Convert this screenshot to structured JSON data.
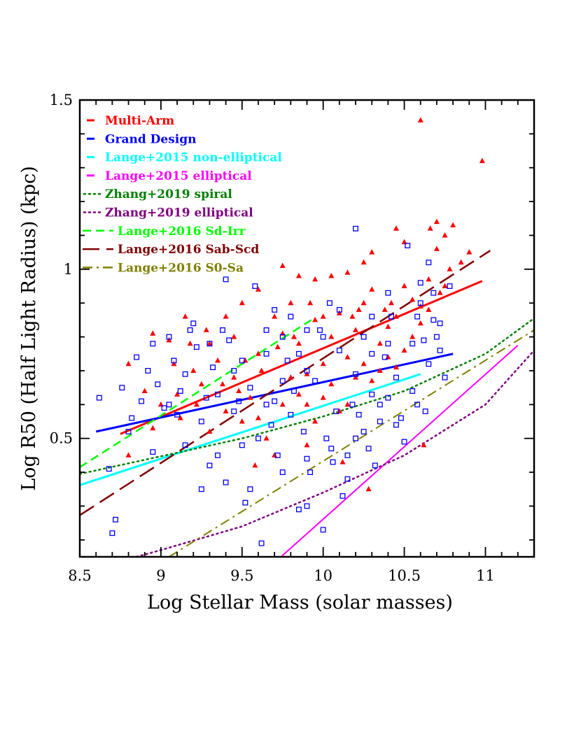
{
  "chart_data": {
    "type": "scatter",
    "xlabel": "Log Stellar Mass (solar masses)",
    "ylabel": "Log R50 (Half Light Radius) (kpc)",
    "xlim": [
      8.5,
      11.3
    ],
    "ylim": [
      0.15,
      1.5
    ],
    "x_ticks": [
      "8.5",
      "9",
      "9.5",
      "10",
      "10.5",
      "11"
    ],
    "y_ticks": [
      "0.5",
      "1",
      "1.5"
    ],
    "x_tick_values": [
      8.5,
      9,
      9.5,
      10,
      10.5,
      11
    ],
    "y_tick_values": [
      0.5,
      1,
      1.5
    ],
    "grid": false,
    "legend_position": "top-left",
    "legend": [
      {
        "label": "Multi-Arm",
        "color": "#ff0000",
        "style": "solid"
      },
      {
        "label": "Grand Design",
        "color": "#0000ff",
        "style": "solid"
      },
      {
        "label": "Lange+2015 non-elliptical",
        "color": "#00ffff",
        "style": "solid"
      },
      {
        "label": "Lange+2015 elliptical",
        "color": "#ff00ff",
        "style": "solid"
      },
      {
        "label": "Zhang+2019 spiral",
        "color": "#008000",
        "style": "dotted"
      },
      {
        "label": "Zhang+2019 elliptical",
        "color": "#800080",
        "style": "dotted"
      },
      {
        "label": "Lange+2016 Sd-Irr",
        "color": "#00ff00",
        "style": "dashed"
      },
      {
        "label": "Lange+2016 Sab-Scd",
        "color": "#800000",
        "style": "longdash"
      },
      {
        "label": "Lange+2016 S0-Sa",
        "color": "#808000",
        "style": "dashdot"
      }
    ],
    "lines": [
      {
        "name": "Multi-Arm",
        "color": "#ff0000",
        "style": "solid",
        "width": 3,
        "x": [
          8.75,
          10.98
        ],
        "y": [
          0.513,
          0.965
        ]
      },
      {
        "name": "Grand Design",
        "color": "#0000ff",
        "style": "solid",
        "width": 3,
        "x": [
          8.6,
          10.8
        ],
        "y": [
          0.52,
          0.75
        ]
      },
      {
        "name": "Lange+2015 non-elliptical",
        "color": "#00ffff",
        "style": "solid",
        "width": 3,
        "x": [
          8.5,
          10.6
        ],
        "y": [
          0.362,
          0.69
        ]
      },
      {
        "name": "Lange+2015 elliptical",
        "color": "#ff00ff",
        "style": "solid",
        "width": 2,
        "x": [
          9.74,
          11.2
        ],
        "y": [
          0.15,
          0.775
        ]
      },
      {
        "name": "Zhang+2019 spiral",
        "color": "#008000",
        "style": "dotted",
        "width": 2.5,
        "x": [
          8.5,
          9.0,
          9.5,
          10.0,
          10.5,
          11.0,
          11.3
        ],
        "y": [
          0.395,
          0.447,
          0.5,
          0.565,
          0.64,
          0.75,
          0.855
        ]
      },
      {
        "name": "Zhang+2019 elliptical",
        "color": "#800080",
        "style": "dotted",
        "width": 2.5,
        "x": [
          8.85,
          9.0,
          9.5,
          10.0,
          10.5,
          11.0,
          11.3
        ],
        "y": [
          0.15,
          0.17,
          0.24,
          0.34,
          0.45,
          0.6,
          0.76
        ]
      },
      {
        "name": "Lange+2016 Sd-Irr",
        "color": "#00ff00",
        "style": "dashed",
        "width": 2.5,
        "x": [
          8.5,
          9.95
        ],
        "y": [
          0.415,
          0.857
        ]
      },
      {
        "name": "Lange+2016 Sab-Scd",
        "color": "#800000",
        "style": "longdash",
        "width": 2.5,
        "x": [
          8.5,
          11.03
        ],
        "y": [
          0.273,
          1.055
        ]
      },
      {
        "name": "Lange+2016 S0-Sa",
        "color": "#808000",
        "style": "dashdot",
        "width": 2,
        "x": [
          9.05,
          11.3
        ],
        "y": [
          0.15,
          0.82
        ]
      }
    ],
    "series": [
      {
        "name": "Multi-Arm",
        "marker": "triangle",
        "color": "#ff0000",
        "points": [
          [
            10.6,
            1.44
          ],
          [
            10.98,
            1.32
          ],
          [
            8.8,
            0.72
          ],
          [
            8.95,
            0.81
          ],
          [
            9.05,
            0.79
          ],
          [
            9.15,
            0.86
          ],
          [
            9.3,
            0.78
          ],
          [
            9.45,
            0.8
          ],
          [
            9.6,
            0.75
          ],
          [
            9.7,
            0.86
          ],
          [
            9.75,
            0.81
          ],
          [
            9.8,
            0.9
          ],
          [
            9.85,
            0.78
          ],
          [
            9.9,
            0.69
          ],
          [
            9.95,
            0.85
          ],
          [
            10.0,
            0.72
          ],
          [
            10.05,
            0.8
          ],
          [
            10.1,
            0.87
          ],
          [
            10.15,
            0.74
          ],
          [
            10.2,
            0.82
          ],
          [
            10.25,
            0.9
          ],
          [
            10.3,
            0.94
          ],
          [
            10.35,
            0.78
          ],
          [
            10.4,
            0.83
          ],
          [
            10.45,
            0.86
          ],
          [
            10.5,
            0.95
          ],
          [
            10.55,
            0.91
          ],
          [
            10.6,
            0.89
          ],
          [
            10.65,
            0.97
          ],
          [
            10.7,
            1.06
          ],
          [
            10.75,
            1.1
          ],
          [
            10.8,
            1.13
          ],
          [
            10.7,
            1.14
          ],
          [
            10.66,
            1.12
          ],
          [
            10.5,
            1.08
          ],
          [
            10.45,
            1.12
          ],
          [
            10.3,
            1.05
          ],
          [
            10.25,
            1.02
          ],
          [
            10.15,
            0.99
          ],
          [
            10.05,
            0.98
          ],
          [
            9.95,
            0.97
          ],
          [
            9.85,
            0.98
          ],
          [
            9.75,
            1.01
          ],
          [
            9.6,
            0.94
          ],
          [
            9.5,
            0.9
          ],
          [
            9.4,
            0.86
          ],
          [
            9.35,
            0.73
          ],
          [
            9.25,
            0.66
          ],
          [
            9.2,
            0.7
          ],
          [
            9.1,
            0.63
          ],
          [
            9.0,
            0.6
          ],
          [
            8.95,
            0.53
          ],
          [
            8.8,
            0.45
          ],
          [
            8.9,
            0.64
          ],
          [
            9.3,
            0.52
          ],
          [
            9.4,
            0.58
          ],
          [
            9.55,
            0.62
          ],
          [
            9.6,
            0.56
          ],
          [
            9.65,
            0.5
          ],
          [
            9.7,
            0.45
          ],
          [
            9.75,
            0.6
          ],
          [
            9.8,
            0.68
          ],
          [
            9.85,
            0.63
          ],
          [
            9.9,
            0.6
          ],
          [
            9.95,
            0.55
          ],
          [
            10.0,
            0.62
          ],
          [
            10.05,
            0.66
          ],
          [
            10.1,
            0.58
          ],
          [
            10.15,
            0.6
          ],
          [
            10.2,
            0.68
          ],
          [
            10.25,
            0.72
          ],
          [
            10.3,
            0.67
          ],
          [
            10.35,
            0.7
          ],
          [
            10.4,
            0.74
          ],
          [
            10.45,
            0.71
          ],
          [
            10.5,
            0.76
          ],
          [
            10.55,
            0.8
          ],
          [
            10.6,
            0.84
          ],
          [
            10.65,
            0.88
          ],
          [
            10.72,
            0.93
          ],
          [
            10.78,
            1.0
          ],
          [
            10.62,
            0.48
          ],
          [
            10.28,
            0.35
          ],
          [
            10.12,
            0.43
          ],
          [
            9.9,
            0.48
          ],
          [
            9.58,
            0.42
          ],
          [
            9.5,
            0.55
          ],
          [
            9.45,
            0.68
          ],
          [
            9.28,
            0.82
          ],
          [
            9.18,
            0.78
          ],
          [
            9.08,
            0.72
          ],
          [
            10.85,
            1.02
          ],
          [
            10.9,
            1.05
          ],
          [
            10.75,
            0.95
          ],
          [
            10.42,
            0.9
          ],
          [
            10.38,
            0.88
          ],
          [
            10.22,
            0.88
          ],
          [
            10.18,
            0.86
          ],
          [
            10.0,
            0.86
          ],
          [
            9.92,
            0.9
          ],
          [
            9.82,
            0.8
          ],
          [
            9.72,
            0.77
          ],
          [
            9.62,
            0.7
          ],
          [
            9.52,
            0.73
          ],
          [
            9.48,
            0.64
          ],
          [
            9.38,
            0.66
          ],
          [
            9.22,
            0.6
          ],
          [
            9.12,
            0.56
          ]
        ]
      },
      {
        "name": "Grand Design",
        "marker": "square",
        "color": "#0000ff",
        "points": [
          [
            10.2,
            1.12
          ],
          [
            8.62,
            0.62
          ],
          [
            8.68,
            0.41
          ],
          [
            8.7,
            0.22
          ],
          [
            8.72,
            0.26
          ],
          [
            8.76,
            0.65
          ],
          [
            8.8,
            0.52
          ],
          [
            8.82,
            0.56
          ],
          [
            8.85,
            0.74
          ],
          [
            8.88,
            0.61
          ],
          [
            8.92,
            0.7
          ],
          [
            8.95,
            0.78
          ],
          [
            8.98,
            0.66
          ],
          [
            9.02,
            0.59
          ],
          [
            9.05,
            0.8
          ],
          [
            9.08,
            0.73
          ],
          [
            9.1,
            0.57
          ],
          [
            9.12,
            0.64
          ],
          [
            9.15,
            0.69
          ],
          [
            9.18,
            0.82
          ],
          [
            9.2,
            0.84
          ],
          [
            9.22,
            0.77
          ],
          [
            9.25,
            0.35
          ],
          [
            9.28,
            0.62
          ],
          [
            9.3,
            0.78
          ],
          [
            9.32,
            0.71
          ],
          [
            9.35,
            0.45
          ],
          [
            9.38,
            0.82
          ],
          [
            9.4,
            0.97
          ],
          [
            9.42,
            0.79
          ],
          [
            9.45,
            0.58
          ],
          [
            9.48,
            0.61
          ],
          [
            9.5,
            0.73
          ],
          [
            9.52,
            0.31
          ],
          [
            9.55,
            0.35
          ],
          [
            9.58,
            0.95
          ],
          [
            9.6,
            0.14
          ],
          [
            9.62,
            0.19
          ],
          [
            9.65,
            0.75
          ],
          [
            9.68,
            0.54
          ],
          [
            9.7,
            0.88
          ],
          [
            9.72,
            0.45
          ],
          [
            9.75,
            0.4
          ],
          [
            9.78,
            0.73
          ],
          [
            9.8,
            0.86
          ],
          [
            9.82,
            0.64
          ],
          [
            9.85,
            0.29
          ],
          [
            9.88,
            0.52
          ],
          [
            9.9,
            0.3
          ],
          [
            9.92,
            0.4
          ],
          [
            9.95,
            0.67
          ],
          [
            9.98,
            0.82
          ],
          [
            10.0,
            0.23
          ],
          [
            10.02,
            0.5
          ],
          [
            10.04,
            0.9
          ],
          [
            10.06,
            0.43
          ],
          [
            10.08,
            0.58
          ],
          [
            10.1,
            0.76
          ],
          [
            10.12,
            0.33
          ],
          [
            10.15,
            0.45
          ],
          [
            10.18,
            0.6
          ],
          [
            10.2,
            0.69
          ],
          [
            10.22,
            0.57
          ],
          [
            10.25,
            0.8
          ],
          [
            10.28,
            0.47
          ],
          [
            10.3,
            0.63
          ],
          [
            10.32,
            0.42
          ],
          [
            10.35,
            0.55
          ],
          [
            10.38,
            0.74
          ],
          [
            10.4,
            0.62
          ],
          [
            10.42,
            0.86
          ],
          [
            10.45,
            0.68
          ],
          [
            10.48,
            0.56
          ],
          [
            10.5,
            0.49
          ],
          [
            10.52,
            1.07
          ],
          [
            10.55,
            0.78
          ],
          [
            10.58,
            0.86
          ],
          [
            10.6,
            0.96
          ],
          [
            10.62,
            0.79
          ],
          [
            10.65,
            1.02
          ],
          [
            10.68,
            0.85
          ],
          [
            10.7,
            0.8
          ],
          [
            10.72,
            0.84
          ],
          [
            10.75,
            0.68
          ],
          [
            10.78,
            0.95
          ],
          [
            10.63,
            0.58
          ],
          [
            10.58,
            0.6
          ],
          [
            10.4,
            0.93
          ],
          [
            10.3,
            0.86
          ],
          [
            10.1,
            0.88
          ],
          [
            10.0,
            0.8
          ],
          [
            9.9,
            0.82
          ],
          [
            9.85,
            0.75
          ],
          [
            9.75,
            0.67
          ],
          [
            9.65,
            0.6
          ],
          [
            9.55,
            0.65
          ],
          [
            9.45,
            0.7
          ],
          [
            9.35,
            0.63
          ],
          [
            9.25,
            0.55
          ],
          [
            9.15,
            0.48
          ],
          [
            9.05,
            0.6
          ],
          [
            8.95,
            0.46
          ],
          [
            9.3,
            0.42
          ],
          [
            9.4,
            0.37
          ],
          [
            9.5,
            0.48
          ],
          [
            9.6,
            0.5
          ],
          [
            9.7,
            0.61
          ],
          [
            9.8,
            0.57
          ],
          [
            9.9,
            0.44
          ],
          [
            10.05,
            0.47
          ],
          [
            10.15,
            0.38
          ],
          [
            10.25,
            0.52
          ],
          [
            10.35,
            0.6
          ],
          [
            10.45,
            0.54
          ],
          [
            10.55,
            0.64
          ],
          [
            10.65,
            0.72
          ],
          [
            10.72,
            0.76
          ],
          [
            9.65,
            0.82
          ],
          [
            9.75,
            0.8
          ],
          [
            9.9,
            0.7
          ],
          [
            10.2,
            0.5
          ],
          [
            10.3,
            0.75
          ],
          [
            10.4,
            0.78
          ],
          [
            10.6,
            0.9
          ],
          [
            10.68,
            0.93
          ]
        ]
      }
    ]
  }
}
